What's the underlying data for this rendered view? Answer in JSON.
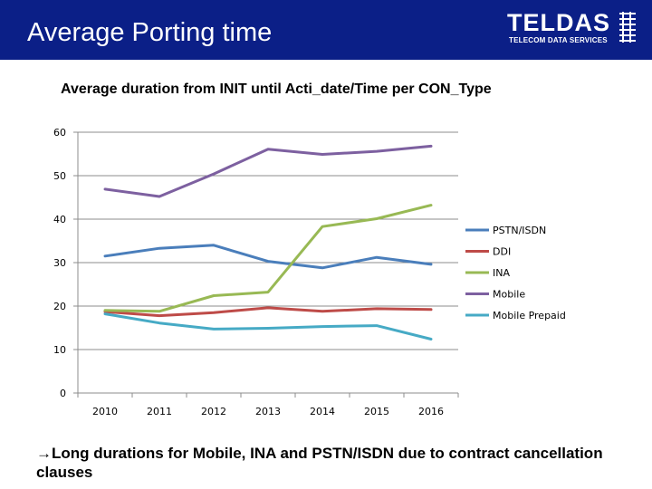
{
  "slide": {
    "title": "Average Porting time",
    "conclusion_arrow": "→",
    "conclusion": "Long durations for Mobile, INA and PSTN/ISDN due to contract cancellation clauses"
  },
  "logo": {
    "name": "TELDAS",
    "subtitle": "TELECOM DATA SERVICES"
  },
  "chart_data": {
    "type": "line",
    "title": "Average duration from INIT until Acti_date/Time per CON_Type",
    "xlabel": "",
    "ylabel": "",
    "categories": [
      "2010",
      "2011",
      "2012",
      "2013",
      "2014",
      "2015",
      "2016"
    ],
    "ylim": [
      0,
      60
    ],
    "yticks": [
      0,
      10,
      20,
      30,
      40,
      50,
      60
    ],
    "grid": true,
    "legend_position": "right",
    "series": [
      {
        "name": "PSTN/ISDN",
        "color": "#4a7ebb",
        "values": [
          31.5,
          33.3,
          34,
          30.3,
          28.8,
          31.2,
          29.6
        ]
      },
      {
        "name": "DDI",
        "color": "#be4b48",
        "values": [
          18.7,
          17.8,
          18.5,
          19.6,
          18.8,
          19.4,
          19.2
        ]
      },
      {
        "name": "INA",
        "color": "#98b954",
        "values": [
          19,
          18.8,
          22.4,
          23.2,
          38.3,
          40.1,
          43.2
        ]
      },
      {
        "name": "Mobile",
        "color": "#7d60a0",
        "values": [
          46.9,
          45.2,
          50.4,
          56.1,
          54.9,
          55.6,
          56.8
        ]
      },
      {
        "name": "Mobile Prepaid",
        "color": "#46aac5",
        "values": [
          18.2,
          16.1,
          14.7,
          14.9,
          15.3,
          15.5,
          12.4
        ]
      }
    ]
  }
}
